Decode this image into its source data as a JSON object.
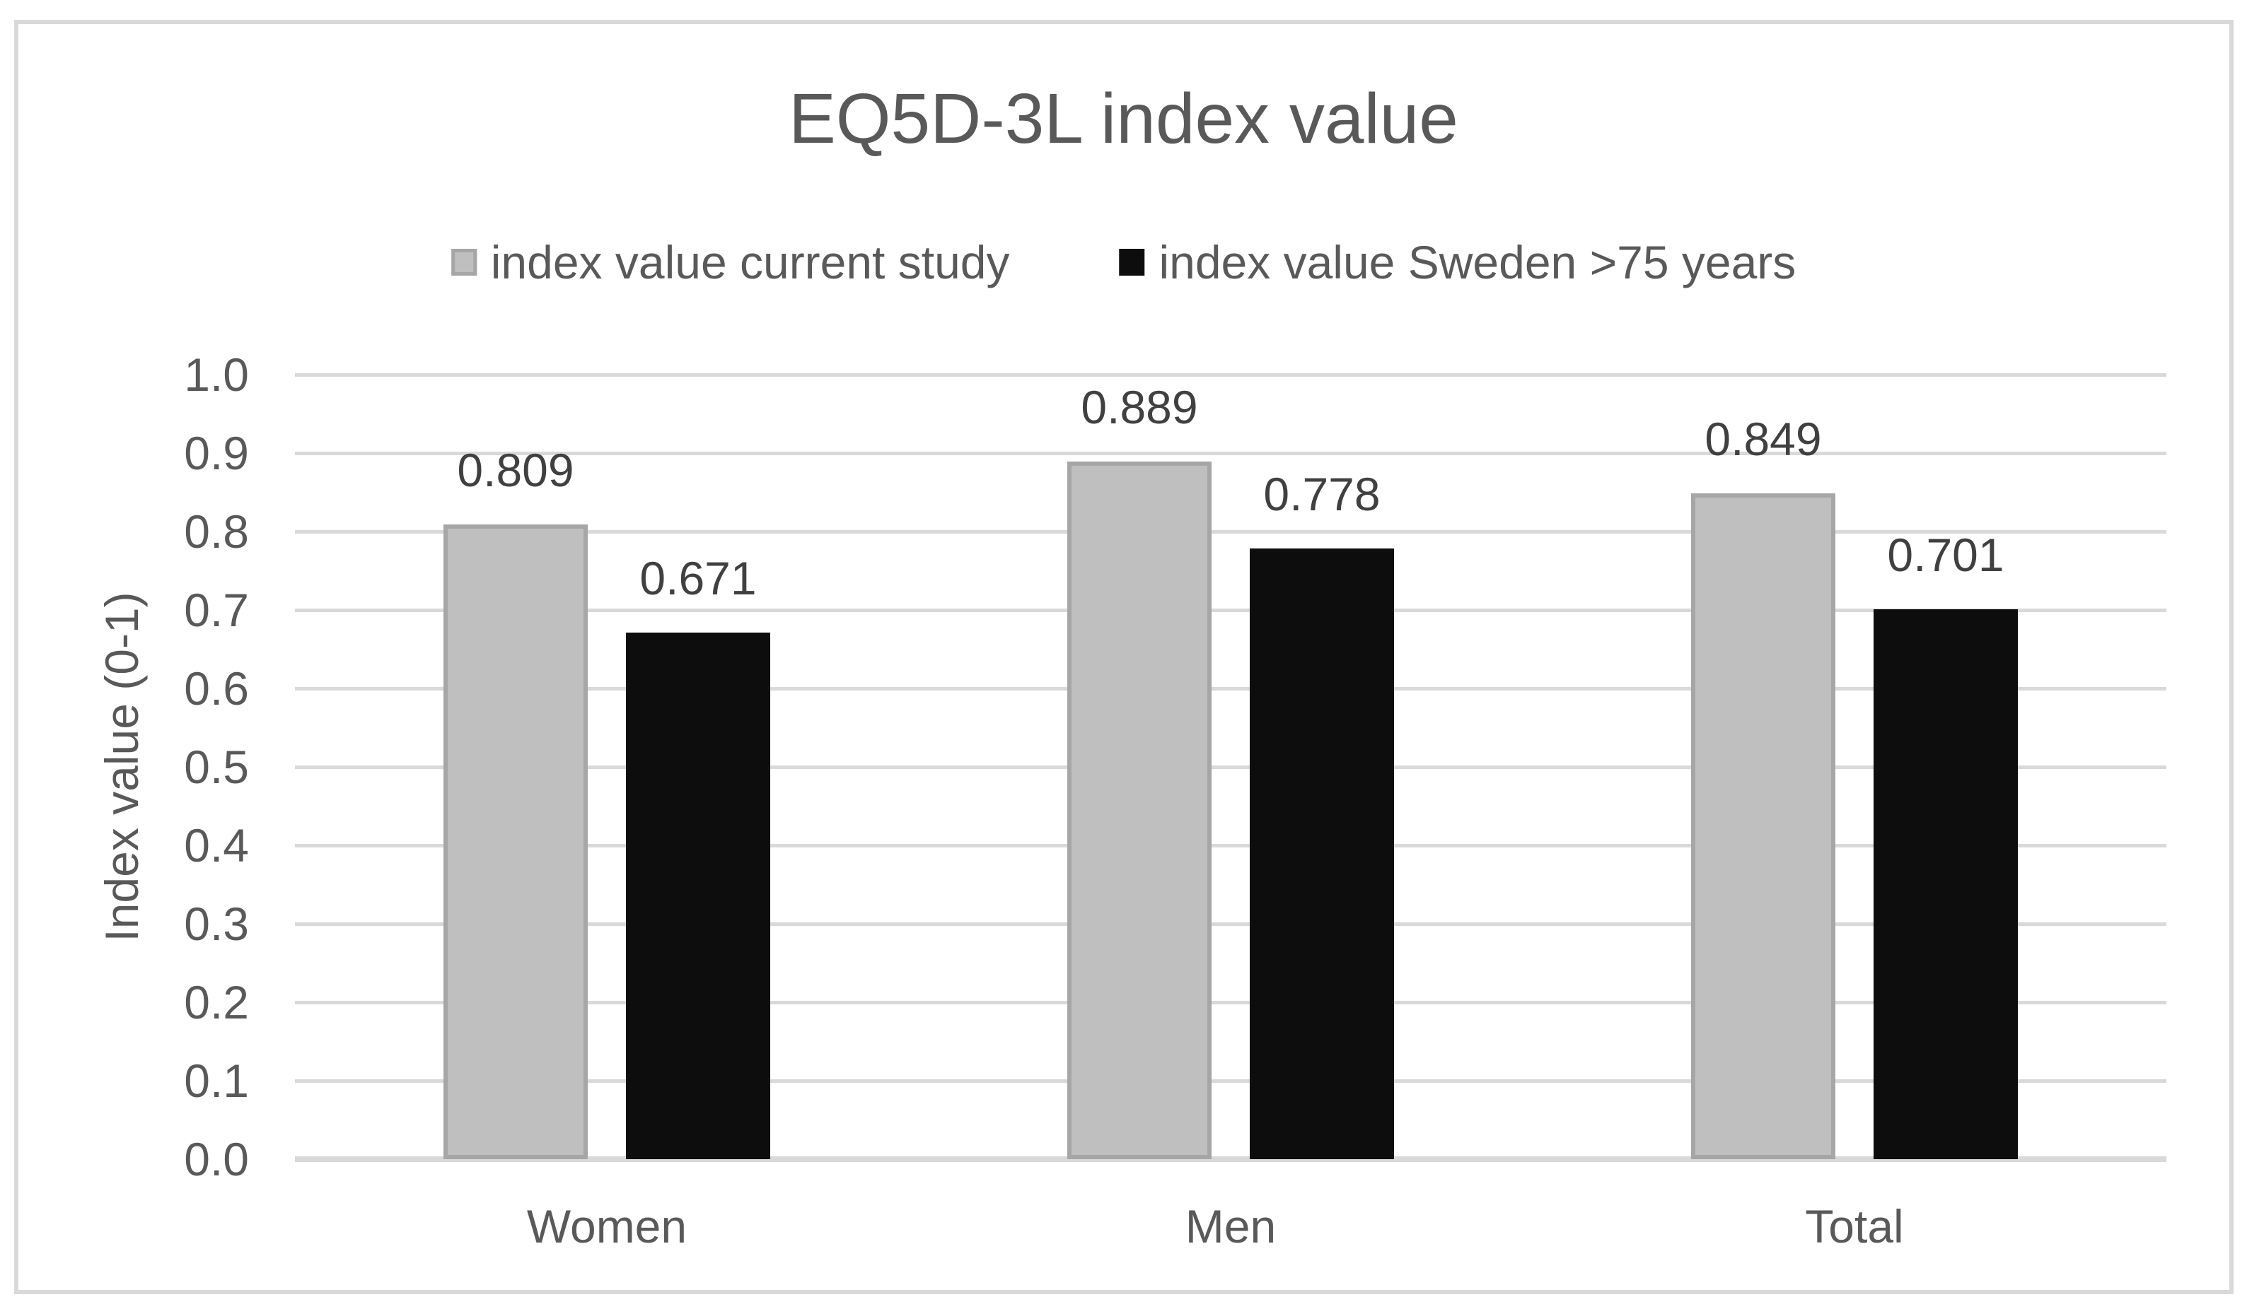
{
  "figure": {
    "background": "#FFFFFF",
    "border_color": "#D9D9D9"
  },
  "chart_data": {
    "type": "bar",
    "title": "EQ5D-3L index value",
    "categories": [
      "Women",
      "Men",
      "Total"
    ],
    "series": [
      {
        "name": "index value current study",
        "values": [
          0.809,
          0.889,
          0.849
        ],
        "labels": [
          "0.809",
          "0.889",
          "0.849"
        ],
        "fill": "#BFBFBF",
        "border": "#A6A6A6"
      },
      {
        "name": "index value Sweden >75 years",
        "values": [
          0.671,
          0.778,
          0.701
        ],
        "labels": [
          "0.671",
          "0.778",
          "0.701"
        ],
        "fill": "#0D0D0D",
        "border": "#0D0D0D"
      }
    ],
    "xlabel": "",
    "ylabel": "Index value (0-1)",
    "ylim": [
      0.0,
      1.0
    ],
    "ytick_step": 0.1,
    "yticks": [
      "0.0",
      "0.1",
      "0.2",
      "0.3",
      "0.4",
      "0.5",
      "0.6",
      "0.7",
      "0.8",
      "0.9",
      "1.0"
    ],
    "grid": true,
    "legend_position": "top-center",
    "text_color": "#595959",
    "data_label_color": "#404040",
    "gridline_color": "#D9D9D9",
    "axis_line_color": "#D9D9D9"
  }
}
